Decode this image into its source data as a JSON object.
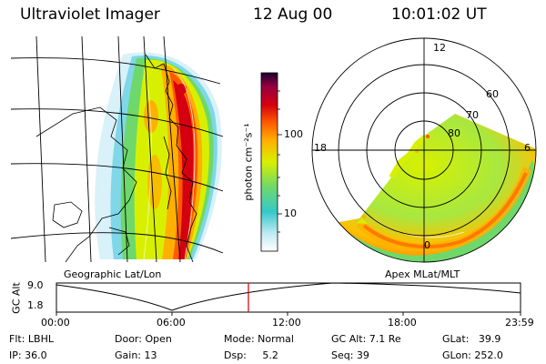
{
  "header": {
    "instrument": "Ultraviolet Imager",
    "date": "12 Aug 00",
    "time": "10:01:02 UT"
  },
  "left_panel": {
    "caption": "Geographic Lat/Lon"
  },
  "right_panel": {
    "caption": "Apex MLat/MLT",
    "mlt_labels": [
      "12",
      "18",
      "6",
      "0"
    ],
    "lat_labels": [
      "60",
      "70",
      "80"
    ]
  },
  "colorbar": {
    "unit_label": "photon cm⁻²s⁻¹",
    "ticks": [
      "100",
      "10"
    ],
    "colors": [
      "#ffffff",
      "#7fd7e8",
      "#35c9c9",
      "#7ee06a",
      "#d8f000",
      "#ffb000",
      "#ff5a00",
      "#d40010",
      "#9a0040",
      "#1a0030"
    ]
  },
  "altitude_plot": {
    "ylabel": "GC Alt",
    "yticks": [
      "9.0",
      "1.8"
    ],
    "xticks": [
      "00:00",
      "06:00",
      "12:00",
      "18:00",
      "23:59"
    ],
    "current_marker_color": "#cc0000"
  },
  "info": {
    "flt": "Flt: LBHL",
    "ip": "IP: 36.0",
    "door": "Door: Open",
    "gain": "Gain: 13",
    "mode": "Mode: Normal",
    "dsp": "Dsp:     5.2",
    "gcalt": "GC Alt: 7.1 Re",
    "seq": "Seq: 39",
    "glat": "GLat:   39.9",
    "glon": "GLon: 252.0"
  }
}
